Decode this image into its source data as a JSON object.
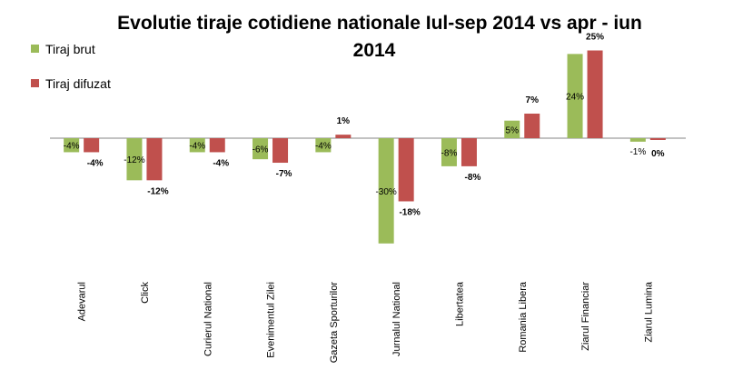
{
  "chart_data": {
    "type": "bar",
    "title": "Evolutie tiraje cotidiene nationale Iul-sep 2014 vs apr - iun 2014",
    "title_lines": [
      "Evolutie tiraje cotidiene nationale Iul-sep 2014 vs apr - iun",
      "2014"
    ],
    "categories": [
      "Adevarul",
      "Click",
      "Curierul National",
      "Evenimentul Zilei",
      "Gazeta Sporturilor",
      "Jurnalul National",
      "Libertatea",
      "Romania Libera",
      "Ziarul Financiar",
      "Ziarul Lumina"
    ],
    "series": [
      {
        "name": "Tiraj brut",
        "color": "#9BBB59",
        "values": [
          -4,
          -12,
          -4,
          -6,
          -4,
          -30,
          -8,
          5,
          24,
          -1
        ],
        "labels": [
          "-4%",
          "-12%",
          "-4%",
          "-6%",
          "-4%",
          "-30%",
          "-8%",
          "5%",
          "24%",
          "-1%"
        ]
      },
      {
        "name": "Tiraj difuzat",
        "color": "#C0504D",
        "values": [
          -4,
          -12,
          -4,
          -7,
          1,
          -18,
          -8,
          7,
          25,
          0
        ],
        "labels": [
          "-4%",
          "-12%",
          "-4%",
          "-7%",
          "1%",
          "-18%",
          "-8%",
          "7%",
          "25%",
          "0%"
        ]
      }
    ],
    "ylim": [
      -32,
      26
    ],
    "grid": false,
    "legend_position": "top-left",
    "xlabel": "",
    "ylabel": ""
  }
}
